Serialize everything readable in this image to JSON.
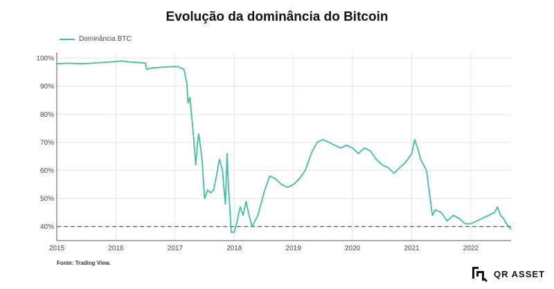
{
  "title": "Evolução da dominância do Bitcoin",
  "source": "Fonte: Trading View.",
  "brand": "QR ASSET",
  "colors": {
    "line": "#3fbf9f",
    "reference": "#3b4a6b",
    "grid": "#e4e4e4",
    "axis": "#555555"
  },
  "chart_data": {
    "type": "line",
    "title": "Evolução da dominância do Bitcoin",
    "xlabel": "",
    "ylabel": "",
    "xlim": [
      2015,
      2022.68
    ],
    "ylim": [
      35,
      102
    ],
    "grid": true,
    "legend_position": "top-left",
    "x_ticks": [
      2015,
      2016,
      2017,
      2018,
      2019,
      2020,
      2021,
      2022
    ],
    "x_tick_labels": [
      "2015",
      "2016",
      "2017",
      "2018",
      "2019",
      "2020",
      "2021",
      "2022"
    ],
    "y_ticks": [
      40,
      50,
      60,
      70,
      80,
      90,
      100
    ],
    "y_tick_labels": [
      "40%",
      "50%",
      "60%",
      "70%",
      "80%",
      "90%",
      "100%"
    ],
    "reference_lines": [
      {
        "y": 40,
        "style": "dashed"
      }
    ],
    "series": [
      {
        "name": "Dominância BTC",
        "x": [
          2015.0,
          2015.2,
          2015.4,
          2015.6,
          2015.8,
          2016.0,
          2016.1,
          2016.2,
          2016.35,
          2016.5,
          2016.52,
          2016.6,
          2016.8,
          2016.95,
          2017.05,
          2017.15,
          2017.2,
          2017.22,
          2017.25,
          2017.3,
          2017.35,
          2017.38,
          2017.4,
          2017.45,
          2017.5,
          2017.55,
          2017.6,
          2017.65,
          2017.7,
          2017.75,
          2017.8,
          2017.85,
          2017.88,
          2017.9,
          2017.95,
          2018.0,
          2018.05,
          2018.1,
          2018.15,
          2018.2,
          2018.25,
          2018.3,
          2018.4,
          2018.5,
          2018.6,
          2018.7,
          2018.8,
          2018.9,
          2019.0,
          2019.1,
          2019.2,
          2019.3,
          2019.4,
          2019.5,
          2019.6,
          2019.7,
          2019.8,
          2019.9,
          2020.0,
          2020.1,
          2020.2,
          2020.3,
          2020.4,
          2020.5,
          2020.6,
          2020.7,
          2020.8,
          2020.9,
          2021.0,
          2021.05,
          2021.1,
          2021.15,
          2021.2,
          2021.25,
          2021.3,
          2021.35,
          2021.4,
          2021.5,
          2021.6,
          2021.7,
          2021.8,
          2021.9,
          2022.0,
          2022.1,
          2022.2,
          2022.3,
          2022.4,
          2022.45,
          2022.5,
          2022.55,
          2022.6,
          2022.68
        ],
        "values": [
          98,
          98.2,
          98,
          98.2,
          98.5,
          98.8,
          99,
          98.7,
          98.5,
          98.2,
          96,
          96.5,
          96.8,
          97,
          97,
          96,
          91,
          84,
          86,
          75,
          62,
          70,
          73,
          65,
          50,
          53,
          52,
          53,
          58,
          64,
          60,
          48,
          66,
          55,
          38,
          38,
          42,
          47,
          44,
          49,
          44,
          40,
          44,
          52,
          58,
          57,
          55,
          54,
          55,
          57,
          60,
          66,
          70,
          71,
          70,
          69,
          68,
          69,
          68,
          66,
          68,
          67,
          64,
          62,
          61,
          59,
          61,
          63,
          66,
          71,
          68,
          64,
          62,
          60,
          52,
          44,
          46,
          45,
          42,
          44,
          43,
          41,
          41,
          42,
          43,
          44,
          45,
          47,
          44,
          43,
          41,
          39
        ]
      }
    ]
  }
}
